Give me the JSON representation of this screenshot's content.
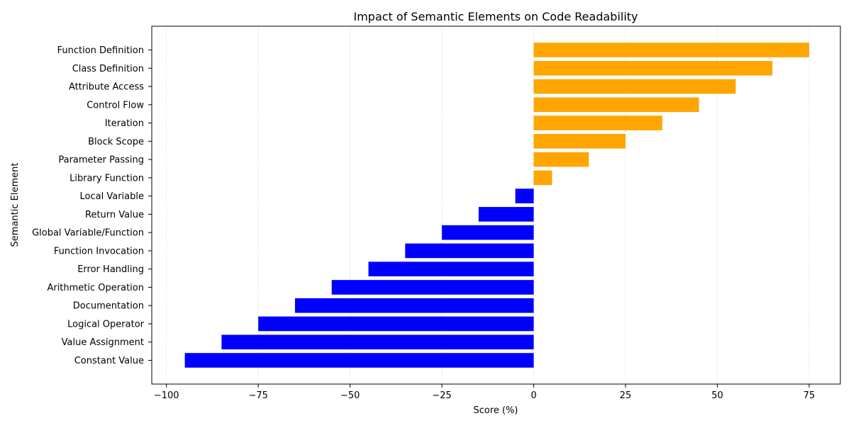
{
  "chart_data": {
    "type": "bar",
    "orientation": "horizontal",
    "title": "Impact of Semantic Elements on Code Readability",
    "xlabel": "Score (%)",
    "ylabel": "Semantic Element",
    "xlim": [
      -104,
      83.5
    ],
    "xticks": [
      -100,
      -75,
      -50,
      -25,
      0,
      25,
      50,
      75
    ],
    "xtick_labels": [
      "−100",
      "−75",
      "−50",
      "−25",
      "0",
      "25",
      "50",
      "75"
    ],
    "grid": "x-axis dotted",
    "colors": {
      "positive": "#FFA500",
      "negative": "#0000FF",
      "grid": "#cccccc",
      "axis": "#000000"
    },
    "categories": [
      "Function Definition",
      "Class Definition",
      "Attribute Access",
      "Control Flow",
      "Iteration",
      "Block Scope",
      "Parameter Passing",
      "Library Function",
      "Local Variable",
      "Return Value",
      "Global Variable/Function",
      "Function Invocation",
      "Error Handling",
      "Arithmetic Operation",
      "Documentation",
      "Logical Operator",
      "Value Assignment",
      "Constant Value"
    ],
    "values": [
      75,
      65,
      55,
      45,
      35,
      25,
      15,
      5,
      -5,
      -15,
      -25,
      -35,
      -45,
      -55,
      -65,
      -75,
      -85,
      -95
    ]
  }
}
